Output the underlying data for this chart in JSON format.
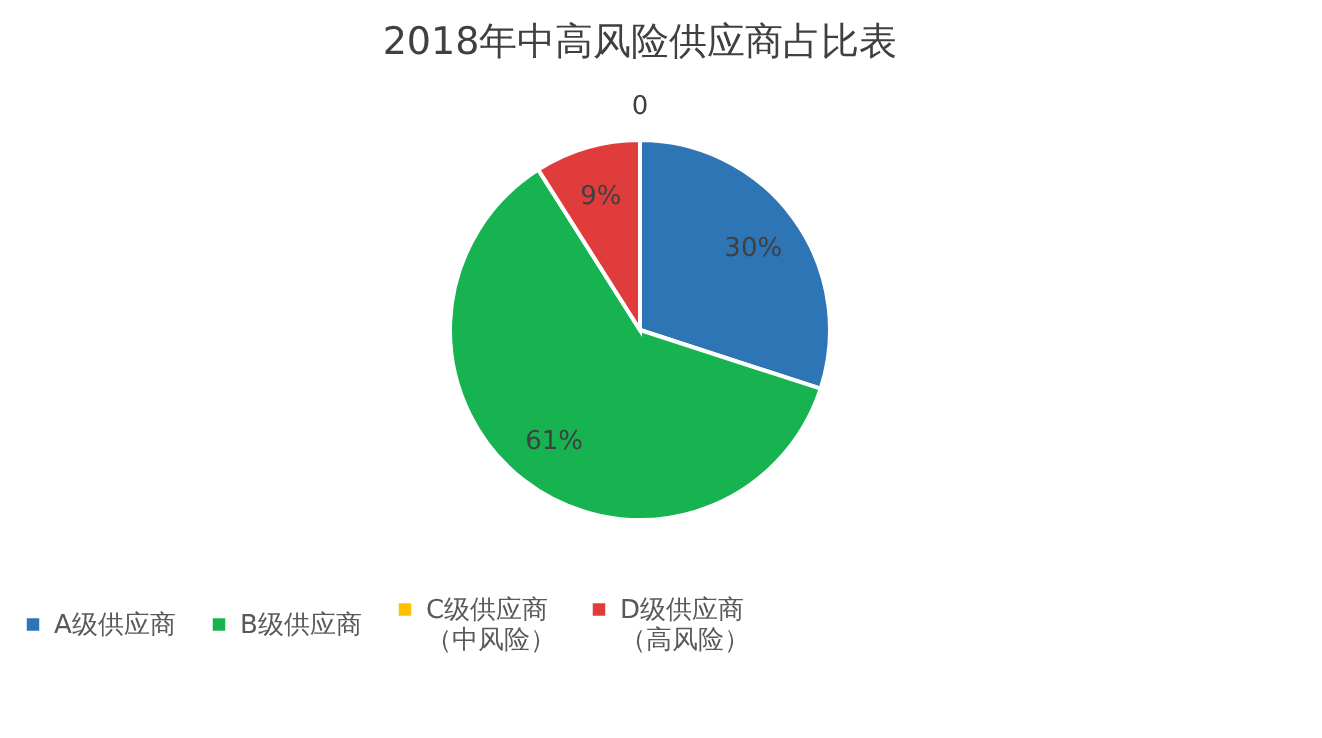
{
  "chart_data": {
    "type": "pie",
    "title": "2018年中高风险供应商占比表",
    "categories": [
      "A级供应商",
      "B级供应商",
      "C级供应商（中风险）",
      "D级供应商（高风险）"
    ],
    "values": [
      30,
      61,
      0,
      9
    ],
    "colors": [
      "#2e75b6",
      "#17b350",
      "#ffc000",
      "#e03c3c"
    ],
    "value_labels": [
      "30%",
      "61%",
      "0",
      "9%"
    ],
    "legend": "bottom"
  }
}
